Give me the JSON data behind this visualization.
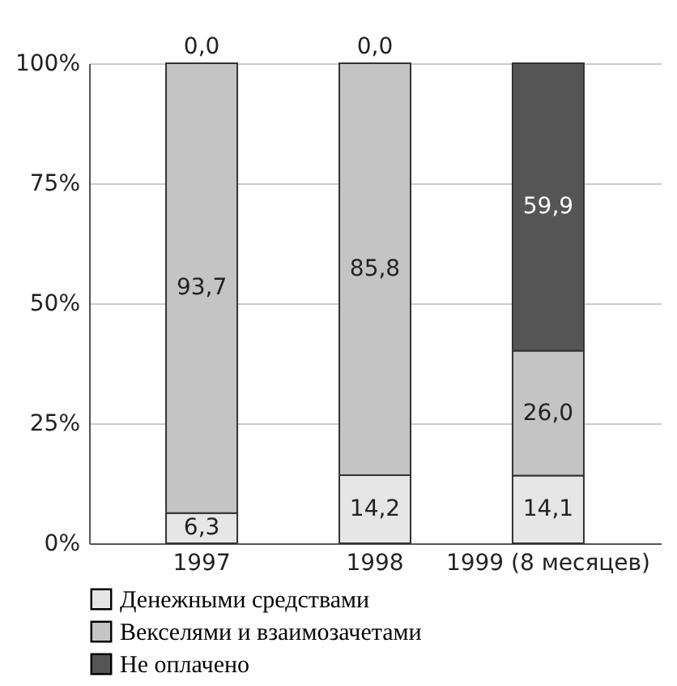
{
  "chart_data": {
    "type": "bar",
    "stacked": true,
    "categories": [
      "1997",
      "1998",
      "1999 (8 месяцев)"
    ],
    "series": [
      {
        "name": "Денежными средствами",
        "color": "#e6e6e6",
        "values": [
          6.3,
          14.2,
          14.1
        ],
        "value_labels": [
          "6,3",
          "14,2",
          "14,1"
        ]
      },
      {
        "name": "Векселями и взаимозачетами",
        "color": "#c4c4c4",
        "values": [
          93.7,
          85.8,
          26.0
        ],
        "value_labels": [
          "93,7",
          "85,8",
          "26,0"
        ]
      },
      {
        "name": "Не оплачено",
        "color": "#555555",
        "values": [
          0.0,
          0.0,
          59.9
        ],
        "value_labels": [
          "0,0",
          "0,0",
          "59,9"
        ]
      }
    ],
    "ylim": [
      0,
      100
    ],
    "yticks": [
      {
        "value": 0,
        "label": "0%"
      },
      {
        "value": 25,
        "label": "25%"
      },
      {
        "value": 50,
        "label": "50%"
      },
      {
        "value": 75,
        "label": "75%"
      },
      {
        "value": 100,
        "label": "100%"
      }
    ],
    "grid": "y",
    "legend": "bottom"
  }
}
